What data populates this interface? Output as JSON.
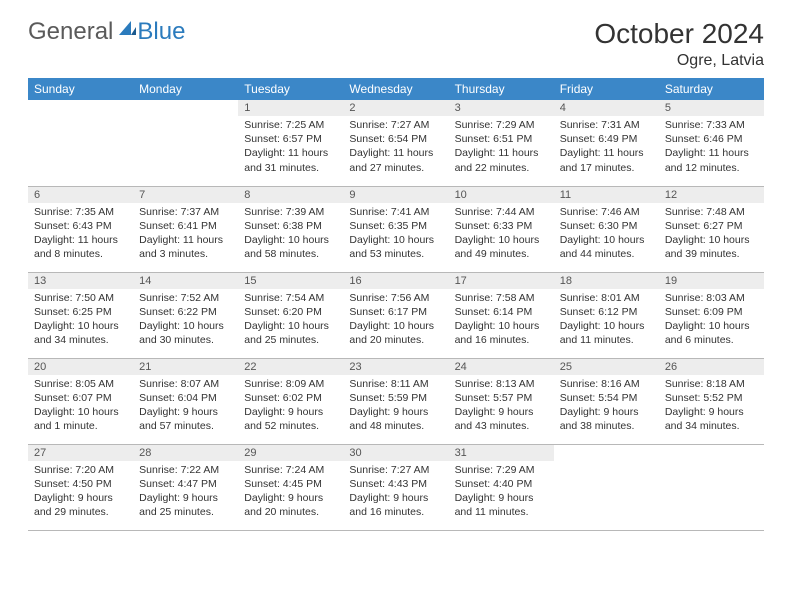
{
  "brand": {
    "part1": "General",
    "part2": "Blue"
  },
  "title": "October 2024",
  "location": "Ogre, Latvia",
  "colors": {
    "header_bg": "#3b87c8",
    "header_text": "#ffffff",
    "daynum_bg": "#ededed",
    "cell_border": "#b8b8b8",
    "brand_gray": "#5a5a5a",
    "brand_blue": "#2b7bbd"
  },
  "weekdays": [
    "Sunday",
    "Monday",
    "Tuesday",
    "Wednesday",
    "Thursday",
    "Friday",
    "Saturday"
  ],
  "weeks": [
    [
      {
        "n": "",
        "sunrise": "",
        "sunset": "",
        "daylight": ""
      },
      {
        "n": "",
        "sunrise": "",
        "sunset": "",
        "daylight": ""
      },
      {
        "n": "1",
        "sunrise": "Sunrise: 7:25 AM",
        "sunset": "Sunset: 6:57 PM",
        "daylight": "Daylight: 11 hours and 31 minutes."
      },
      {
        "n": "2",
        "sunrise": "Sunrise: 7:27 AM",
        "sunset": "Sunset: 6:54 PM",
        "daylight": "Daylight: 11 hours and 27 minutes."
      },
      {
        "n": "3",
        "sunrise": "Sunrise: 7:29 AM",
        "sunset": "Sunset: 6:51 PM",
        "daylight": "Daylight: 11 hours and 22 minutes."
      },
      {
        "n": "4",
        "sunrise": "Sunrise: 7:31 AM",
        "sunset": "Sunset: 6:49 PM",
        "daylight": "Daylight: 11 hours and 17 minutes."
      },
      {
        "n": "5",
        "sunrise": "Sunrise: 7:33 AM",
        "sunset": "Sunset: 6:46 PM",
        "daylight": "Daylight: 11 hours and 12 minutes."
      }
    ],
    [
      {
        "n": "6",
        "sunrise": "Sunrise: 7:35 AM",
        "sunset": "Sunset: 6:43 PM",
        "daylight": "Daylight: 11 hours and 8 minutes."
      },
      {
        "n": "7",
        "sunrise": "Sunrise: 7:37 AM",
        "sunset": "Sunset: 6:41 PM",
        "daylight": "Daylight: 11 hours and 3 minutes."
      },
      {
        "n": "8",
        "sunrise": "Sunrise: 7:39 AM",
        "sunset": "Sunset: 6:38 PM",
        "daylight": "Daylight: 10 hours and 58 minutes."
      },
      {
        "n": "9",
        "sunrise": "Sunrise: 7:41 AM",
        "sunset": "Sunset: 6:35 PM",
        "daylight": "Daylight: 10 hours and 53 minutes."
      },
      {
        "n": "10",
        "sunrise": "Sunrise: 7:44 AM",
        "sunset": "Sunset: 6:33 PM",
        "daylight": "Daylight: 10 hours and 49 minutes."
      },
      {
        "n": "11",
        "sunrise": "Sunrise: 7:46 AM",
        "sunset": "Sunset: 6:30 PM",
        "daylight": "Daylight: 10 hours and 44 minutes."
      },
      {
        "n": "12",
        "sunrise": "Sunrise: 7:48 AM",
        "sunset": "Sunset: 6:27 PM",
        "daylight": "Daylight: 10 hours and 39 minutes."
      }
    ],
    [
      {
        "n": "13",
        "sunrise": "Sunrise: 7:50 AM",
        "sunset": "Sunset: 6:25 PM",
        "daylight": "Daylight: 10 hours and 34 minutes."
      },
      {
        "n": "14",
        "sunrise": "Sunrise: 7:52 AM",
        "sunset": "Sunset: 6:22 PM",
        "daylight": "Daylight: 10 hours and 30 minutes."
      },
      {
        "n": "15",
        "sunrise": "Sunrise: 7:54 AM",
        "sunset": "Sunset: 6:20 PM",
        "daylight": "Daylight: 10 hours and 25 minutes."
      },
      {
        "n": "16",
        "sunrise": "Sunrise: 7:56 AM",
        "sunset": "Sunset: 6:17 PM",
        "daylight": "Daylight: 10 hours and 20 minutes."
      },
      {
        "n": "17",
        "sunrise": "Sunrise: 7:58 AM",
        "sunset": "Sunset: 6:14 PM",
        "daylight": "Daylight: 10 hours and 16 minutes."
      },
      {
        "n": "18",
        "sunrise": "Sunrise: 8:01 AM",
        "sunset": "Sunset: 6:12 PM",
        "daylight": "Daylight: 10 hours and 11 minutes."
      },
      {
        "n": "19",
        "sunrise": "Sunrise: 8:03 AM",
        "sunset": "Sunset: 6:09 PM",
        "daylight": "Daylight: 10 hours and 6 minutes."
      }
    ],
    [
      {
        "n": "20",
        "sunrise": "Sunrise: 8:05 AM",
        "sunset": "Sunset: 6:07 PM",
        "daylight": "Daylight: 10 hours and 1 minute."
      },
      {
        "n": "21",
        "sunrise": "Sunrise: 8:07 AM",
        "sunset": "Sunset: 6:04 PM",
        "daylight": "Daylight: 9 hours and 57 minutes."
      },
      {
        "n": "22",
        "sunrise": "Sunrise: 8:09 AM",
        "sunset": "Sunset: 6:02 PM",
        "daylight": "Daylight: 9 hours and 52 minutes."
      },
      {
        "n": "23",
        "sunrise": "Sunrise: 8:11 AM",
        "sunset": "Sunset: 5:59 PM",
        "daylight": "Daylight: 9 hours and 48 minutes."
      },
      {
        "n": "24",
        "sunrise": "Sunrise: 8:13 AM",
        "sunset": "Sunset: 5:57 PM",
        "daylight": "Daylight: 9 hours and 43 minutes."
      },
      {
        "n": "25",
        "sunrise": "Sunrise: 8:16 AM",
        "sunset": "Sunset: 5:54 PM",
        "daylight": "Daylight: 9 hours and 38 minutes."
      },
      {
        "n": "26",
        "sunrise": "Sunrise: 8:18 AM",
        "sunset": "Sunset: 5:52 PM",
        "daylight": "Daylight: 9 hours and 34 minutes."
      }
    ],
    [
      {
        "n": "27",
        "sunrise": "Sunrise: 7:20 AM",
        "sunset": "Sunset: 4:50 PM",
        "daylight": "Daylight: 9 hours and 29 minutes."
      },
      {
        "n": "28",
        "sunrise": "Sunrise: 7:22 AM",
        "sunset": "Sunset: 4:47 PM",
        "daylight": "Daylight: 9 hours and 25 minutes."
      },
      {
        "n": "29",
        "sunrise": "Sunrise: 7:24 AM",
        "sunset": "Sunset: 4:45 PM",
        "daylight": "Daylight: 9 hours and 20 minutes."
      },
      {
        "n": "30",
        "sunrise": "Sunrise: 7:27 AM",
        "sunset": "Sunset: 4:43 PM",
        "daylight": "Daylight: 9 hours and 16 minutes."
      },
      {
        "n": "31",
        "sunrise": "Sunrise: 7:29 AM",
        "sunset": "Sunset: 4:40 PM",
        "daylight": "Daylight: 9 hours and 11 minutes."
      },
      {
        "n": "",
        "sunrise": "",
        "sunset": "",
        "daylight": ""
      },
      {
        "n": "",
        "sunrise": "",
        "sunset": "",
        "daylight": ""
      }
    ]
  ]
}
